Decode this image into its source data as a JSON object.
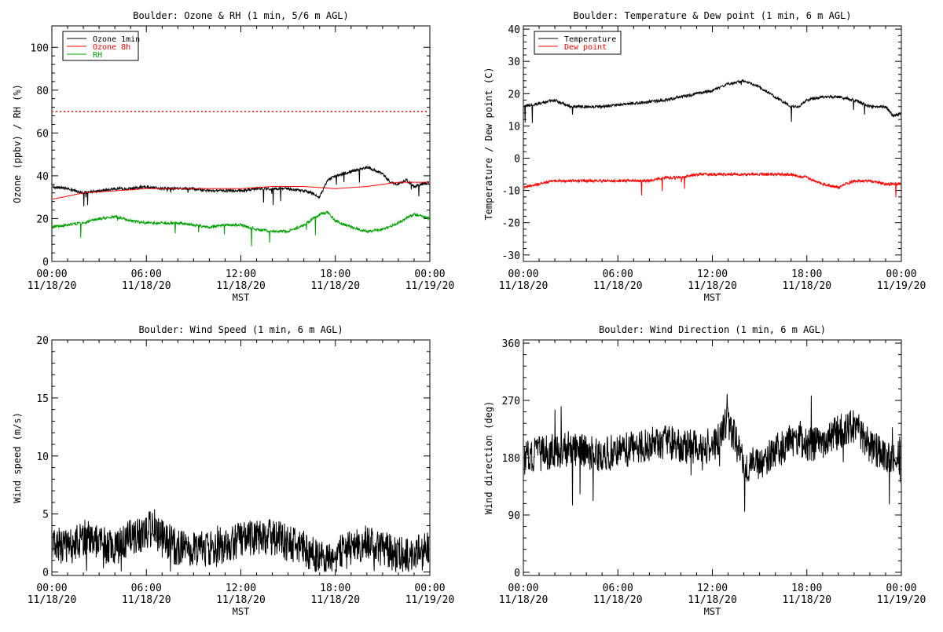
{
  "chart_data": [
    {
      "type": "line",
      "title": "Boulder: Ozone & RH (1 min, 5/6 m AGL)",
      "xlabel": "MST",
      "ylabel": "Ozone (ppbv) / RH (%)",
      "ylim": [
        0,
        110
      ],
      "yticks": [
        0,
        20,
        40,
        60,
        80,
        100
      ],
      "xlim": [
        0,
        24
      ],
      "x_ticks": [
        {
          "time": "00:00",
          "date": "11/18/20"
        },
        {
          "time": "06:00",
          "date": "11/18/20"
        },
        {
          "time": "12:00",
          "date": "11/18/20"
        },
        {
          "time": "18:00",
          "date": "11/18/20"
        },
        {
          "time": "00:00",
          "date": "11/19/20"
        }
      ],
      "legend": "top-left",
      "reference_line": {
        "y": 70,
        "color": "#ff0000",
        "style": "dotted"
      },
      "series": [
        {
          "name": "Ozone 1min",
          "color": "#000000",
          "style": "noisy",
          "x": [
            0,
            1,
            2,
            3,
            4,
            5,
            6,
            7,
            8,
            9,
            10,
            11,
            12,
            13,
            14,
            15,
            16,
            16.5,
            17,
            17.5,
            18,
            19,
            20,
            21,
            21.5,
            22,
            22.5,
            23,
            24
          ],
          "y": [
            35,
            34,
            32,
            33,
            34,
            34,
            35,
            34,
            34,
            34,
            33,
            33,
            33,
            34,
            34,
            34,
            33,
            32,
            30,
            38,
            40,
            42,
            44,
            41,
            37,
            36,
            38,
            35,
            37
          ]
        },
        {
          "name": "Ozone 8h",
          "color": "#ff0000",
          "style": "smooth",
          "x": [
            0,
            2,
            4,
            6,
            8,
            10,
            12,
            14,
            16,
            18,
            20,
            22,
            24
          ],
          "y": [
            29,
            32,
            33,
            34,
            34,
            34,
            34,
            35,
            35,
            34,
            35,
            37,
            37
          ]
        },
        {
          "name": "RH",
          "color": "#00a000",
          "style": "noisy",
          "x": [
            0,
            1,
            2,
            3,
            4,
            5,
            6,
            7,
            8,
            9,
            10,
            11,
            12,
            13,
            14,
            15,
            16,
            17,
            17.5,
            18,
            19,
            20,
            21,
            22,
            23,
            24
          ],
          "y": [
            16,
            17,
            18,
            20,
            21,
            19,
            18,
            18,
            18,
            17,
            16,
            17,
            17,
            15,
            14,
            14,
            17,
            22,
            23,
            19,
            16,
            14,
            15,
            18,
            22,
            20
          ]
        }
      ]
    },
    {
      "type": "line",
      "title": "Boulder: Temperature & Dew point (1 min, 6 m AGL)",
      "xlabel": "MST",
      "ylabel": "Temperature / Dew point (C)",
      "ylim": [
        -32,
        41
      ],
      "yticks": [
        -30,
        -20,
        -10,
        0,
        10,
        20,
        30,
        40
      ],
      "xlim": [
        0,
        24
      ],
      "x_ticks": [
        {
          "time": "00:00",
          "date": "11/18/20"
        },
        {
          "time": "06:00",
          "date": "11/18/20"
        },
        {
          "time": "12:00",
          "date": "11/18/20"
        },
        {
          "time": "18:00",
          "date": "11/18/20"
        },
        {
          "time": "00:00",
          "date": "11/19/20"
        }
      ],
      "legend": "top-left",
      "series": [
        {
          "name": "Temperature",
          "color": "#000000",
          "style": "noisy",
          "x": [
            0,
            1,
            2,
            3,
            4,
            5,
            6,
            7,
            8,
            9,
            10,
            11,
            12,
            13,
            14,
            15,
            16,
            17,
            17.5,
            18,
            19,
            20,
            21,
            22,
            22.5,
            23,
            23.5,
            24
          ],
          "y": [
            16,
            17,
            18,
            16,
            16,
            16,
            16.5,
            17,
            17.5,
            18,
            19,
            20,
            21,
            23,
            24,
            22,
            19,
            16,
            16,
            18,
            19,
            19,
            18,
            16,
            16,
            16,
            13,
            14
          ]
        },
        {
          "name": "Dew point",
          "color": "#ff0000",
          "style": "noisy",
          "x": [
            0,
            1,
            2,
            3,
            4,
            5,
            6,
            7,
            8,
            9,
            10,
            11,
            12,
            13,
            14,
            15,
            16,
            17,
            18,
            19,
            20,
            21,
            22,
            23,
            24
          ],
          "y": [
            -9,
            -8,
            -7,
            -7,
            -7,
            -7,
            -7,
            -7,
            -7,
            -6,
            -6,
            -5,
            -5,
            -5,
            -5,
            -5,
            -5,
            -5,
            -6,
            -8,
            -9,
            -7,
            -7,
            -8,
            -8
          ]
        }
      ]
    },
    {
      "type": "line",
      "title": "Boulder: Wind Speed (1 min, 6 m AGL)",
      "xlabel": "MST",
      "ylabel": "Wind speed (m/s)",
      "ylim": [
        -0.3,
        20
      ],
      "yticks": [
        0,
        5,
        10,
        15,
        20
      ],
      "xlim": [
        0,
        24
      ],
      "x_ticks": [
        {
          "time": "00:00",
          "date": "11/18/20"
        },
        {
          "time": "06:00",
          "date": "11/18/20"
        },
        {
          "time": "12:00",
          "date": "11/18/20"
        },
        {
          "time": "18:00",
          "date": "11/18/20"
        },
        {
          "time": "00:00",
          "date": "11/19/20"
        }
      ],
      "series": [
        {
          "color": "#000000",
          "style": "spiky",
          "x": [
            0,
            1,
            2,
            3,
            4,
            5,
            6,
            6.5,
            7,
            8,
            9,
            10,
            11,
            12,
            13,
            14,
            15,
            16,
            17,
            18,
            19,
            20,
            21,
            22,
            23,
            24
          ],
          "y": [
            2.5,
            2,
            3,
            2.5,
            2,
            3,
            3.5,
            4,
            3,
            2,
            2,
            2,
            2,
            3,
            3,
            3,
            2.5,
            2,
            1,
            1.5,
            2,
            2.5,
            2,
            1.5,
            1.5,
            2
          ]
        }
      ]
    },
    {
      "type": "line",
      "title": "Boulder: Wind Direction (1 min, 6 m AGL)",
      "xlabel": "MST",
      "ylabel": "Wind direction (deg)",
      "ylim": [
        -5,
        365
      ],
      "yticks": [
        0,
        90,
        180,
        270,
        360
      ],
      "xlim": [
        0,
        24
      ],
      "x_ticks": [
        {
          "time": "00:00",
          "date": "11/18/20"
        },
        {
          "time": "06:00",
          "date": "11/18/20"
        },
        {
          "time": "12:00",
          "date": "11/18/20"
        },
        {
          "time": "18:00",
          "date": "11/18/20"
        },
        {
          "time": "00:00",
          "date": "11/19/20"
        }
      ],
      "series": [
        {
          "color": "#000000",
          "style": "spiky",
          "x": [
            0,
            1,
            2,
            3,
            4,
            5,
            6,
            7,
            8,
            9,
            10,
            11,
            12,
            13,
            14,
            15,
            16,
            17,
            18,
            19,
            20,
            21,
            22,
            23,
            24
          ],
          "y": [
            180,
            185,
            190,
            195,
            190,
            185,
            190,
            195,
            200,
            205,
            200,
            195,
            190,
            240,
            170,
            170,
            190,
            205,
            200,
            205,
            220,
            230,
            200,
            180,
            190
          ]
        }
      ]
    }
  ]
}
